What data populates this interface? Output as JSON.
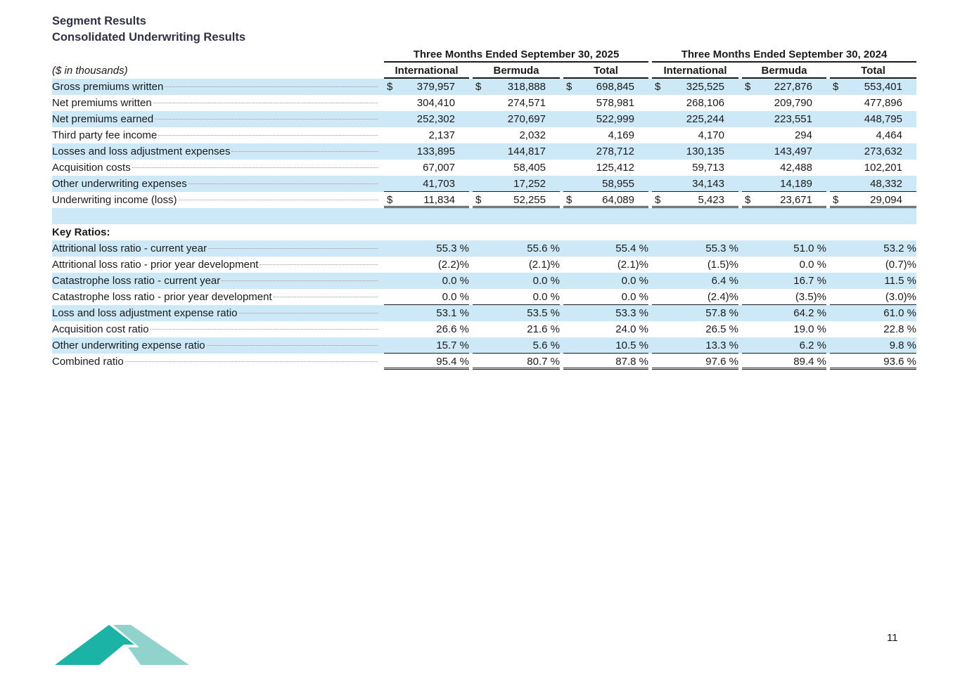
{
  "title": "Segment Results",
  "subtitle": "Consolidated Underwriting Results",
  "units_label": "($ in thousands)",
  "period_headers": [
    "Three Months Ended September 30, 2025",
    "Three Months Ended September 30, 2024"
  ],
  "column_headers": [
    "International",
    "Bermuda",
    "Total",
    "International",
    "Bermuda",
    "Total"
  ],
  "currency_symbol": "$",
  "rows": [
    {
      "label": "Gross premiums written",
      "dollar": true,
      "values": [
        "379,957",
        "318,888",
        "698,845",
        "325,525",
        "227,876",
        "553,401"
      ]
    },
    {
      "label": "Net premiums written",
      "values": [
        "304,410",
        "274,571",
        "578,981",
        "268,106",
        "209,790",
        "477,896"
      ]
    },
    {
      "label": "Net premiums earned",
      "values": [
        "252,302",
        "270,697",
        "522,999",
        "225,244",
        "223,551",
        "448,795"
      ]
    },
    {
      "label": "Third party fee income",
      "values": [
        "2,137",
        "2,032",
        "4,169",
        "4,170",
        "294",
        "4,464"
      ]
    },
    {
      "label": "Losses and loss adjustment expenses",
      "values": [
        "133,895",
        "144,817",
        "278,712",
        "130,135",
        "143,497",
        "273,632"
      ]
    },
    {
      "label": "Acquisition costs",
      "values": [
        "67,007",
        "58,405",
        "125,412",
        "59,713",
        "42,488",
        "102,201"
      ]
    },
    {
      "label": "Other underwriting expenses",
      "values": [
        "41,703",
        "17,252",
        "58,955",
        "34,143",
        "14,189",
        "48,332"
      ]
    },
    {
      "label": "Underwriting income (loss)",
      "dollar": true,
      "values": [
        "11,834",
        "52,255",
        "64,089",
        "5,423",
        "23,671",
        "29,094"
      ]
    }
  ],
  "key_ratios_heading": "Key Ratios:",
  "ratios": [
    {
      "label": "Attritional loss ratio - current year",
      "values": [
        "55.3 %",
        "55.6 %",
        "55.4 %",
        "55.3 %",
        "51.0 %",
        "53.2 %"
      ]
    },
    {
      "label": "Attritional loss ratio - prior year development",
      "values": [
        "(2.2)%",
        "(2.1)%",
        "(2.1)%",
        "(1.5)%",
        "0.0 %",
        "(0.7)%"
      ]
    },
    {
      "label": "Catastrophe loss ratio - current year",
      "values": [
        "0.0 %",
        "0.0 %",
        "0.0 %",
        "6.4 %",
        "16.7 %",
        "11.5 %"
      ]
    },
    {
      "label": "Catastrophe loss ratio - prior year development",
      "values": [
        "0.0 %",
        "0.0 %",
        "0.0 %",
        "(2.4)%",
        "(3.5)%",
        "(3.0)%"
      ]
    },
    {
      "label": "Loss and loss adjustment expense ratio",
      "values": [
        "53.1 %",
        "53.5 %",
        "53.3 %",
        "57.8 %",
        "64.2 %",
        "61.0 %"
      ]
    },
    {
      "label": "Acquisition cost ratio",
      "values": [
        "26.6 %",
        "21.6 %",
        "24.0 %",
        "26.5 %",
        "19.0 %",
        "22.8 %"
      ]
    },
    {
      "label": "Other underwriting expense ratio",
      "values": [
        "15.7 %",
        "5.6 %",
        "10.5 %",
        "13.3 %",
        "6.2 %",
        "9.8 %"
      ]
    },
    {
      "label": "Combined ratio",
      "values": [
        "95.4 %",
        "80.7 %",
        "87.8 %",
        "97.6 %",
        "89.4 %",
        "93.6 %"
      ]
    }
  ],
  "page_number": "11",
  "colors": {
    "row_shade": "#cde9f8",
    "logo_dark": "#1ab3a6",
    "logo_light": "#8fd3cc"
  }
}
